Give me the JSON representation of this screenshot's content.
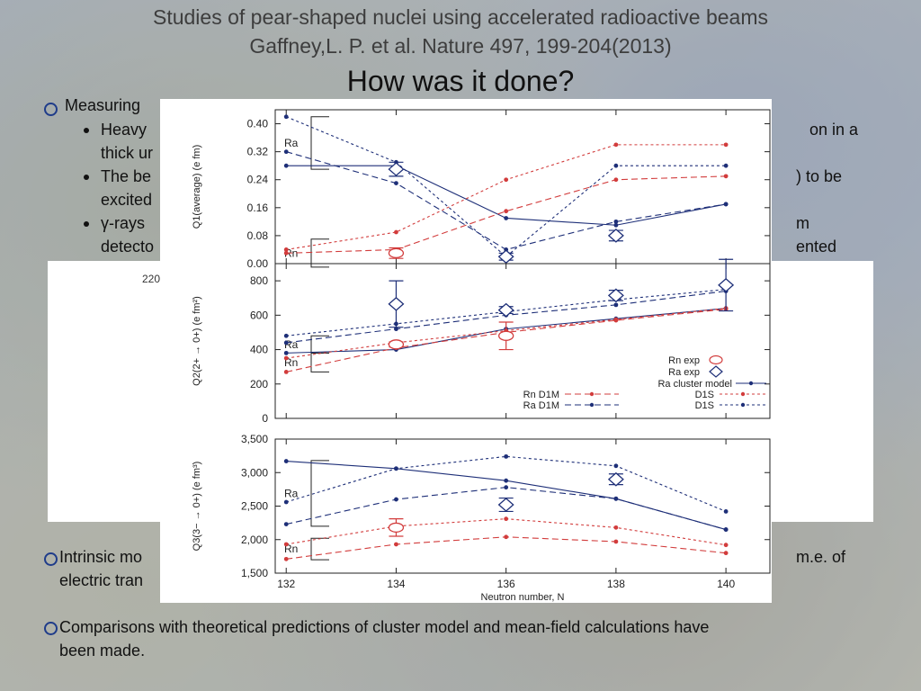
{
  "header": {
    "title_line1": "Studies of pear-shaped nuclei using accelerated radioactive beams",
    "title_line2": "Gaffney,L. P. et al. Nature 497, 199-204(2013)",
    "heading": "How was it done?"
  },
  "bullets": {
    "b1": "Measuring",
    "sub1_line1_start": "Heavy",
    "sub1_line1_end": "on in a",
    "sub1_line2_start": "thick ur",
    "sub2_line1_start": "The be",
    "sub2_line1_end": ") to be",
    "sub2_line2_start": "excited",
    "sub3_line1_start": "γ-rays",
    "sub3_line1_end": "m",
    "sub3_line2_start": "detecto",
    "sub3_line2_end": "ented",
    "panel_label": "220",
    "b2_line1_start": "Intrinsic mo",
    "b2_line1_end": "m.e. of",
    "b2_line2_start": "electric tran",
    "b3_line1": "Comparisons with theoretical predictions of cluster model and mean-field calculations have",
    "b3_line2": "been made."
  },
  "colors": {
    "red": "#d23c3c",
    "blue": "#1e2f78",
    "bullet_ring": "#1f3c8a"
  },
  "chart_data": {
    "type": "line",
    "xlabel": "Neutron number, N",
    "x": [
      132,
      134,
      136,
      138,
      140
    ],
    "panels": [
      {
        "id": "q1",
        "ylabel": "Q1(average) (e fm)",
        "ylim": [
          0,
          0.44
        ],
        "yticks": [
          0.0,
          0.08,
          0.16,
          0.24,
          0.32,
          0.4
        ],
        "ytick_labels": [
          "0.00",
          "0.08",
          "0.16",
          "0.24",
          "0.32",
          "0.40"
        ],
        "groups": [
          {
            "name": "Ra",
            "y_range": [
              0.27,
              0.42
            ]
          },
          {
            "name": "Rn",
            "y_range": [
              -0.01,
              0.07
            ]
          }
        ],
        "series": [
          {
            "name": "Ra cluster model",
            "color": "blue",
            "dash": "solid",
            "values": [
              0.28,
              0.28,
              0.13,
              0.11,
              0.17
            ]
          },
          {
            "name": "Ra D1M",
            "color": "blue",
            "dash": "long",
            "values": [
              0.32,
              0.23,
              0.04,
              0.12,
              0.17
            ]
          },
          {
            "name": "Ra D1S",
            "color": "blue",
            "dash": "short",
            "values": [
              0.42,
              0.29,
              0.02,
              0.28,
              0.28
            ]
          },
          {
            "name": "Rn D1M",
            "color": "red",
            "dash": "long",
            "values": [
              0.03,
              0.04,
              0.15,
              0.24,
              0.25
            ]
          },
          {
            "name": "Rn D1S",
            "color": "red",
            "dash": "short",
            "values": [
              0.04,
              0.09,
              0.24,
              0.34,
              0.34
            ]
          }
        ],
        "exp": [
          {
            "name": "Rn exp",
            "marker": "circle",
            "color": "red",
            "points": [
              {
                "x": 134,
                "y": 0.03,
                "err": 0.015
              }
            ]
          },
          {
            "name": "Ra exp",
            "marker": "diamond",
            "color": "blue",
            "points": [
              {
                "x": 134,
                "y": 0.27,
                "err": 0.02
              },
              {
                "x": 136,
                "y": 0.02,
                "err": 0.01
              },
              {
                "x": 138,
                "y": 0.08,
                "err": 0.015
              }
            ]
          }
        ]
      },
      {
        "id": "q2",
        "ylabel": "Q2(2+ → 0+) (e fm²)",
        "ylim": [
          0,
          900
        ],
        "yticks": [
          0,
          200,
          400,
          600,
          800
        ],
        "ytick_labels": [
          "0",
          "200",
          "400",
          "600",
          "800"
        ],
        "groups": [
          {
            "name": "Ra",
            "y_range": [
              380,
              480
            ]
          },
          {
            "name": "Rn",
            "y_range": [
              270,
              380
            ]
          }
        ],
        "series": [
          {
            "name": "Ra cluster model",
            "color": "blue",
            "dash": "solid",
            "values": [
              380,
              400,
              520,
              580,
              640
            ]
          },
          {
            "name": "Ra D1M",
            "color": "blue",
            "dash": "long",
            "values": [
              440,
              520,
              600,
              660,
              740
            ]
          },
          {
            "name": "Ra D1S",
            "color": "blue",
            "dash": "short",
            "values": [
              480,
              550,
              620,
              690,
              750
            ]
          },
          {
            "name": "Rn D1M",
            "color": "red",
            "dash": "long",
            "values": [
              270,
              410,
              500,
              570,
              635
            ]
          },
          {
            "name": "Rn D1S",
            "color": "red",
            "dash": "short",
            "values": [
              350,
              440,
              510,
              575,
              640
            ]
          }
        ],
        "exp": [
          {
            "name": "Rn exp",
            "marker": "circle",
            "color": "red",
            "points": [
              {
                "x": 134,
                "y": 430,
                "err": 15
              },
              {
                "x": 136,
                "y": 480,
                "err": 80
              }
            ]
          },
          {
            "name": "Ra exp",
            "marker": "diamond",
            "color": "blue",
            "points": [
              {
                "x": 134,
                "y": 665,
                "err": 135
              },
              {
                "x": 136,
                "y": 630,
                "err": 20
              },
              {
                "x": 138,
                "y": 715,
                "err": 30
              },
              {
                "x": 140,
                "y": 775,
                "err": 150
              }
            ]
          }
        ],
        "legend": {
          "placement": "right",
          "entries": [
            "Rn exp",
            "Ra exp",
            "Ra cluster model",
            "Rn D1M",
            "D1S",
            "Ra D1M",
            "D1S"
          ]
        }
      },
      {
        "id": "q3",
        "ylabel": "Q3(3− → 0+) (e fm³)",
        "ylim": [
          1500,
          3500
        ],
        "yticks": [
          1500,
          2000,
          2500,
          3000,
          3500
        ],
        "ytick_labels": [
          "1,500",
          "2,000",
          "2,500",
          "3,000",
          "3,500"
        ],
        "groups": [
          {
            "name": "Ra",
            "y_range": [
              2200,
              3180
            ]
          },
          {
            "name": "Rn",
            "y_range": [
              1700,
              2020
            ]
          }
        ],
        "series": [
          {
            "name": "Ra cluster model",
            "color": "blue",
            "dash": "solid",
            "values": [
              3170,
              3060,
              2880,
              2610,
              2150
            ]
          },
          {
            "name": "Ra D1M",
            "color": "blue",
            "dash": "long",
            "values": [
              2230,
              2600,
              2780,
              2610,
              2150
            ]
          },
          {
            "name": "Ra D1S",
            "color": "blue",
            "dash": "short",
            "values": [
              2560,
              3060,
              3240,
              3100,
              2420
            ]
          },
          {
            "name": "Rn D1M",
            "color": "red",
            "dash": "long",
            "values": [
              1710,
              1930,
              2040,
              1970,
              1800
            ]
          },
          {
            "name": "Rn D1S",
            "color": "red",
            "dash": "short",
            "values": [
              1930,
              2200,
              2310,
              2180,
              1920
            ]
          }
        ],
        "exp": [
          {
            "name": "Rn exp",
            "marker": "circle",
            "color": "red",
            "points": [
              {
                "x": 134,
                "y": 2180,
                "err": 130
              }
            ]
          },
          {
            "name": "Ra exp",
            "marker": "diamond",
            "color": "blue",
            "points": [
              {
                "x": 136,
                "y": 2520,
                "err": 100
              },
              {
                "x": 138,
                "y": 2900,
                "err": 80
              }
            ]
          }
        ]
      }
    ]
  }
}
